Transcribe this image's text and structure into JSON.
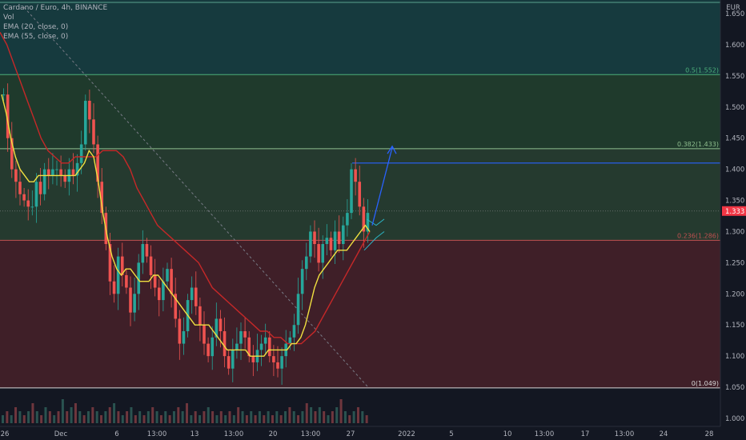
{
  "legend": {
    "title": "Cardano / Euro, 4h, BINANCE",
    "vol": "Vol",
    "ema20": "EMA (20, close, 0)",
    "ema55": "EMA (55, close, 0)"
  },
  "chart_data": {
    "type": "candlestick",
    "currency": "EUR",
    "ylim": [
      0.99,
      1.675
    ],
    "y_ticks": [
      "1.650",
      "1.600",
      "1.550",
      "1.500",
      "1.450",
      "1.400",
      "1.350",
      "1.300",
      "1.250",
      "1.200",
      "1.150",
      "1.100",
      "1.050",
      "1.000"
    ],
    "x_ticks": [
      "26",
      "Dec",
      "6",
      "13:00",
      "13",
      "13:00",
      "20",
      "13:00",
      "27",
      "2022",
      "5",
      "10",
      "13:00",
      "17",
      "13:00",
      "24",
      "28"
    ],
    "last_price": "1.333",
    "fib_levels": [
      {
        "label": "0.5(1.552)",
        "value": 1.552
      },
      {
        "label": "0.382(1.433)",
        "value": 1.433
      },
      {
        "label": "0.236(1.286)",
        "value": 1.286
      },
      {
        "label": "0(1.049)",
        "value": 1.049
      }
    ],
    "top_level": 1.668,
    "resistance_line": 1.41,
    "trend_line": [
      [
        1.66,
        "26"
      ],
      [
        1.05,
        "27"
      ]
    ],
    "close_path": [
      1.52,
      1.45,
      1.4,
      1.38,
      1.36,
      1.35,
      1.34,
      1.34,
      1.38,
      1.36,
      1.4,
      1.39,
      1.4,
      1.4,
      1.39,
      1.38,
      1.4,
      1.39,
      1.41,
      1.44,
      1.51,
      1.48,
      1.44,
      1.38,
      1.33,
      1.28,
      1.22,
      1.2,
      1.26,
      1.23,
      1.21,
      1.17,
      1.2,
      1.25,
      1.28,
      1.26,
      1.23,
      1.21,
      1.19,
      1.22,
      1.24,
      1.2,
      1.16,
      1.12,
      1.14,
      1.19,
      1.21,
      1.18,
      1.15,
      1.12,
      1.1,
      1.13,
      1.16,
      1.14,
      1.1,
      1.08,
      1.11,
      1.12,
      1.14,
      1.13,
      1.1,
      1.09,
      1.11,
      1.12,
      1.13,
      1.1,
      1.09,
      1.08,
      1.1,
      1.12,
      1.13,
      1.15,
      1.2,
      1.24,
      1.26,
      1.3,
      1.28,
      1.25,
      1.28,
      1.29,
      1.27,
      1.3,
      1.28,
      1.31,
      1.33,
      1.4,
      1.38,
      1.34,
      1.3,
      1.33
    ],
    "ema20_path": [
      1.52,
      1.49,
      1.45,
      1.42,
      1.4,
      1.39,
      1.38,
      1.38,
      1.39,
      1.39,
      1.39,
      1.39,
      1.39,
      1.39,
      1.39,
      1.39,
      1.39,
      1.4,
      1.41,
      1.43,
      1.42,
      1.38,
      1.33,
      1.29,
      1.26,
      1.24,
      1.23,
      1.24,
      1.24,
      1.23,
      1.22,
      1.22,
      1.22,
      1.23,
      1.23,
      1.22,
      1.21,
      1.2,
      1.19,
      1.18,
      1.17,
      1.16,
      1.15,
      1.15,
      1.15,
      1.15,
      1.14,
      1.13,
      1.12,
      1.11,
      1.11,
      1.11,
      1.11,
      1.11,
      1.1,
      1.1,
      1.1,
      1.1,
      1.11,
      1.11,
      1.11,
      1.11,
      1.11,
      1.12,
      1.12,
      1.13,
      1.15,
      1.18,
      1.21,
      1.23,
      1.24,
      1.25,
      1.26,
      1.27,
      1.27,
      1.27,
      1.28,
      1.29,
      1.3,
      1.31,
      1.3
    ],
    "ema55_path": [
      1.62,
      1.6,
      1.57,
      1.54,
      1.51,
      1.48,
      1.45,
      1.43,
      1.42,
      1.41,
      1.41,
      1.42,
      1.42,
      1.42,
      1.42,
      1.43,
      1.43,
      1.43,
      1.42,
      1.4,
      1.37,
      1.35,
      1.33,
      1.31,
      1.3,
      1.29,
      1.28,
      1.27,
      1.26,
      1.25,
      1.23,
      1.21,
      1.2,
      1.19,
      1.18,
      1.17,
      1.16,
      1.15,
      1.14,
      1.14,
      1.13,
      1.13,
      1.12,
      1.12,
      1.12,
      1.13,
      1.14,
      1.16,
      1.18,
      1.2,
      1.22,
      1.24,
      1.26,
      1.28,
      1.3
    ],
    "projection": [
      [
        1.31,
        0
      ],
      [
        1.435,
        1
      ]
    ],
    "volume": [
      2,
      3,
      2,
      4,
      3,
      2,
      3,
      5,
      3,
      2,
      4,
      3,
      2,
      3,
      6,
      3,
      4,
      5,
      3,
      2,
      3,
      4,
      3,
      2,
      3,
      4,
      5,
      3,
      2,
      3,
      4,
      2,
      3,
      2,
      3,
      4,
      3,
      2,
      3,
      2,
      3,
      4,
      3,
      5,
      2,
      3,
      2,
      3,
      4,
      3,
      2,
      3,
      2,
      3,
      2,
      4,
      3,
      2,
      3,
      2,
      3,
      2,
      3,
      2,
      3,
      2,
      3,
      4,
      3,
      2,
      3,
      5,
      4,
      3,
      4,
      3,
      2,
      3,
      4,
      6,
      3,
      2,
      3,
      4,
      3,
      2
    ]
  }
}
